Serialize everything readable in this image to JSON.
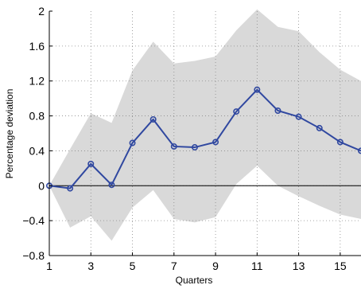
{
  "chart_data": {
    "type": "line",
    "title": "",
    "xlabel": "Quarters",
    "ylabel": "Percentage deviation",
    "xlim": [
      1,
      16
    ],
    "ylim": [
      -0.8,
      2
    ],
    "x_ticks": [
      1,
      3,
      5,
      7,
      9,
      11,
      13,
      15
    ],
    "y_ticks": [
      -0.8,
      -0.4,
      0,
      0.4,
      0.8,
      1.2,
      1.6,
      2
    ],
    "x_tick_labels": [
      "1",
      "3",
      "5",
      "7",
      "9",
      "11",
      "13",
      "15"
    ],
    "y_tick_labels": [
      "−0.8",
      "−0.4",
      "0",
      "0.4",
      "0.8",
      "1.2",
      "1.6",
      "2"
    ],
    "grid": true,
    "zero_line": true,
    "x": [
      1,
      2,
      3,
      4,
      5,
      6,
      7,
      8,
      9,
      10,
      11,
      12,
      13,
      14,
      15,
      16
    ],
    "series": [
      {
        "values": [
          0.0,
          -0.03,
          0.25,
          0.01,
          0.49,
          0.76,
          0.45,
          0.44,
          0.5,
          0.85,
          1.1,
          0.86,
          0.79,
          0.66,
          0.5,
          0.4
        ],
        "color": "#3048a0",
        "marker": "circle"
      }
    ],
    "confidence_band": {
      "upper": [
        0.0,
        0.42,
        0.83,
        0.72,
        1.32,
        1.65,
        1.4,
        1.43,
        1.48,
        1.78,
        2.02,
        1.82,
        1.77,
        1.53,
        1.33,
        1.2
      ],
      "lower": [
        0.0,
        -0.48,
        -0.35,
        -0.63,
        -0.25,
        -0.05,
        -0.38,
        -0.42,
        -0.36,
        0.02,
        0.23,
        0.0,
        -0.12,
        -0.23,
        -0.33,
        -0.38
      ],
      "color": "#d9d9d9"
    }
  }
}
